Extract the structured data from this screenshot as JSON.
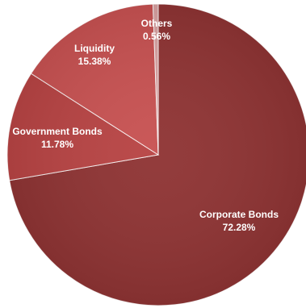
{
  "chart_data": {
    "type": "pie",
    "slices": [
      {
        "label": "Corporate Bonds",
        "value": 72.28,
        "display": "72.28%",
        "color": "#8f3434"
      },
      {
        "label": "Government Bonds",
        "value": 11.78,
        "display": "11.78%",
        "color": "#b84444"
      },
      {
        "label": "Liquidity",
        "value": 15.38,
        "display": "15.38%",
        "color": "#c85252"
      },
      {
        "label": "Others",
        "value": 0.56,
        "display": "0.56%",
        "color": "#d9a2a2"
      }
    ],
    "start_angle_deg": 0,
    "direction": "clockwise",
    "legend": "none",
    "title": ""
  }
}
